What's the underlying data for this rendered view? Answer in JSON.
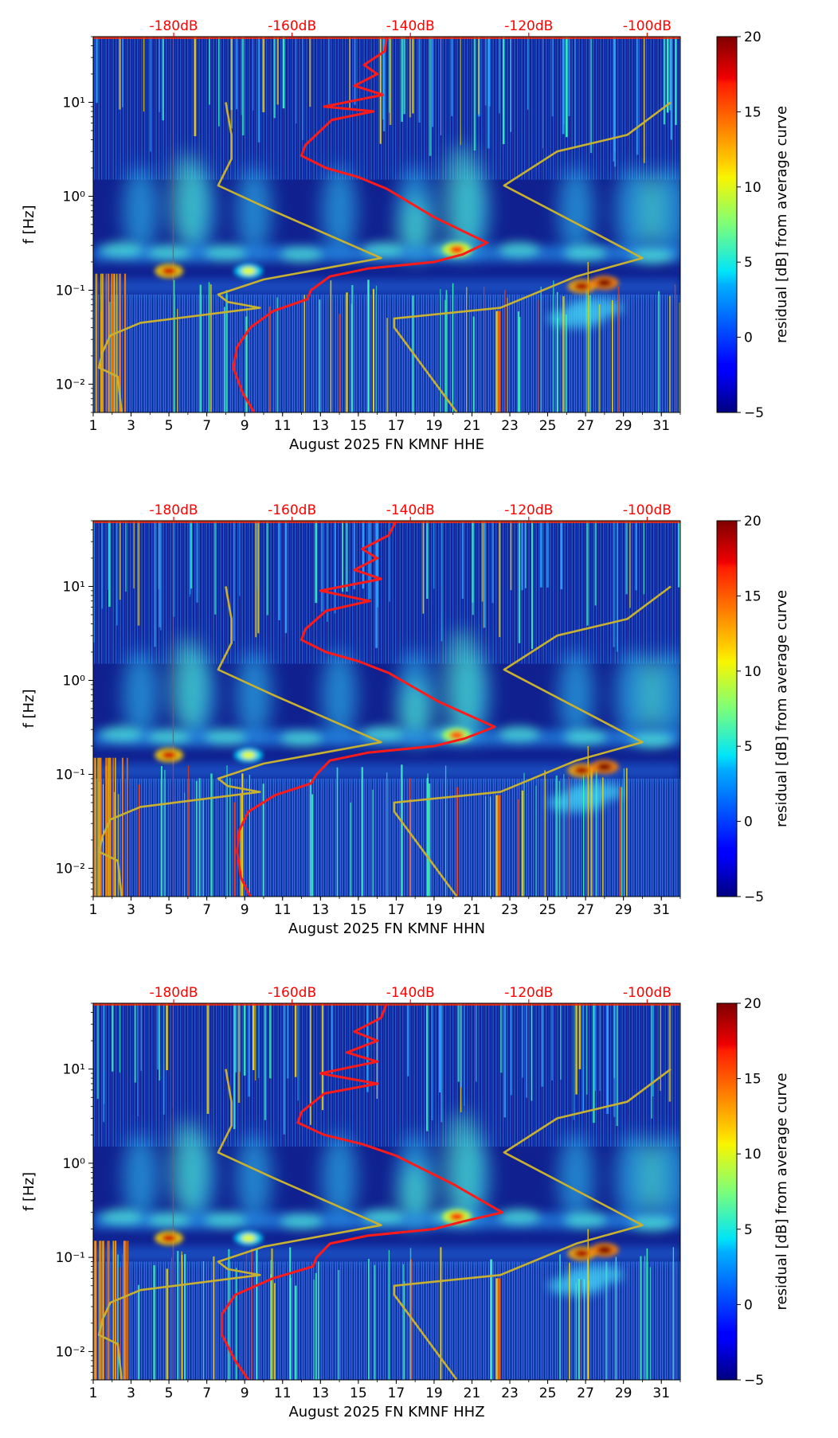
{
  "colors": {
    "db_scale": "#ff0000",
    "average_curve": "#ff1a1a",
    "noise_model": "#c8b030",
    "background": "#10208f"
  },
  "chart_data": [
    {
      "type": "heatmap",
      "title": "",
      "xlabel": "August 2025 FN KMNF  HHE",
      "ylabel": "f [Hz]",
      "x_range": [
        1,
        32
      ],
      "y_range_hz": [
        0.005,
        50
      ],
      "y_scale": "log",
      "x_ticks": [
        "1",
        "3",
        "5",
        "7",
        "9",
        "11",
        "13",
        "15",
        "17",
        "19",
        "21",
        "23",
        "25",
        "27",
        "29",
        "31"
      ],
      "y_ticks": [
        {
          "value": 0.01,
          "label": "10⁻²"
        },
        {
          "value": 0.1,
          "label": "10⁻¹"
        },
        {
          "value": 1,
          "label": "10⁰"
        },
        {
          "value": 10,
          "label": "10¹"
        }
      ],
      "top_scale": [
        {
          "value": 5.25,
          "label": "-180dB"
        },
        {
          "value": 11.5,
          "label": "-160dB"
        },
        {
          "value": 17.75,
          "label": "-140dB"
        },
        {
          "value": 24.0,
          "label": "-120dB"
        },
        {
          "value": 30.25,
          "label": "-100dB"
        }
      ],
      "colorbar": {
        "label": "residual [dB] from average curve",
        "min": -5,
        "max": 20,
        "ticks": [
          "20",
          "15",
          "10",
          "5",
          "0",
          "−5"
        ]
      },
      "noise_model_low": [
        [
          8.0,
          10
        ],
        [
          8.3,
          4.5
        ],
        [
          8.3,
          2.5
        ],
        [
          7.6,
          1.3
        ],
        [
          10.5,
          0.7
        ],
        [
          16.2,
          0.22
        ],
        [
          10,
          0.13
        ],
        [
          7.6,
          0.09
        ],
        [
          8.1,
          0.075
        ],
        [
          9.8,
          0.065
        ],
        [
          3.5,
          0.045
        ],
        [
          1.9,
          0.033
        ],
        [
          1.5,
          0.022
        ],
        [
          1.3,
          0.015
        ],
        [
          2.3,
          0.012
        ],
        [
          2.5,
          0.005
        ]
      ],
      "noise_model_high": [
        [
          31.5,
          10
        ],
        [
          29.2,
          4.5
        ],
        [
          25.5,
          3.0
        ],
        [
          22.7,
          1.3
        ],
        [
          30.0,
          0.22
        ],
        [
          26.5,
          0.14
        ],
        [
          22.5,
          0.065
        ],
        [
          16.9,
          0.05
        ],
        [
          16.9,
          0.04
        ],
        [
          20.2,
          0.005
        ]
      ],
      "average_curve": [
        [
          16.5,
          50
        ],
        [
          16.4,
          35
        ],
        [
          15.3,
          25
        ],
        [
          16.0,
          20
        ],
        [
          14.8,
          15
        ],
        [
          16.3,
          12
        ],
        [
          13.2,
          9
        ],
        [
          15.8,
          8
        ],
        [
          13.6,
          6.5
        ],
        [
          12.2,
          3.5
        ],
        [
          12.0,
          2.7
        ],
        [
          13.3,
          2.0
        ],
        [
          15.0,
          1.6
        ],
        [
          16.5,
          1.2
        ],
        [
          19.0,
          0.6
        ],
        [
          21.8,
          0.32
        ],
        [
          20.5,
          0.24
        ],
        [
          19.0,
          0.2
        ],
        [
          15.5,
          0.17
        ],
        [
          13.5,
          0.14
        ],
        [
          12.5,
          0.1
        ],
        [
          12.3,
          0.08
        ],
        [
          10.5,
          0.06
        ],
        [
          9.3,
          0.04
        ],
        [
          8.6,
          0.025
        ],
        [
          8.4,
          0.015
        ],
        [
          8.9,
          0.008
        ],
        [
          9.5,
          0.005
        ]
      ],
      "hot_spots": [
        {
          "day": 5.0,
          "f_hz": 0.16,
          "value_db": 18
        },
        {
          "day": 9.2,
          "f_hz": 0.16,
          "value_db": 10
        },
        {
          "day": 20.2,
          "f_hz": 0.27,
          "value_db": 16
        },
        {
          "day": 26.8,
          "f_hz": 0.11,
          "value_db": 19
        },
        {
          "day": 28.0,
          "f_hz": 0.12,
          "value_db": 20
        }
      ]
    },
    {
      "type": "heatmap",
      "title": "",
      "xlabel": "August 2025 FN KMNF  HHN",
      "ylabel": "f [Hz]",
      "x_range": [
        1,
        32
      ],
      "y_range_hz": [
        0.005,
        50
      ],
      "y_scale": "log",
      "x_ticks": [
        "1",
        "3",
        "5",
        "7",
        "9",
        "11",
        "13",
        "15",
        "17",
        "19",
        "21",
        "23",
        "25",
        "27",
        "29",
        "31"
      ],
      "y_ticks": [
        {
          "value": 0.01,
          "label": "10⁻²"
        },
        {
          "value": 0.1,
          "label": "10⁻¹"
        },
        {
          "value": 1,
          "label": "10⁰"
        },
        {
          "value": 10,
          "label": "10¹"
        }
      ],
      "top_scale": [
        {
          "value": 5.25,
          "label": "-180dB"
        },
        {
          "value": 11.5,
          "label": "-160dB"
        },
        {
          "value": 17.75,
          "label": "-140dB"
        },
        {
          "value": 24.0,
          "label": "-120dB"
        },
        {
          "value": 30.25,
          "label": "-100dB"
        }
      ],
      "colorbar": {
        "label": "residual [dB] from average curve",
        "min": -5,
        "max": 20,
        "ticks": [
          "20",
          "15",
          "10",
          "5",
          "0",
          "−5"
        ]
      },
      "noise_model_low": [
        [
          8.0,
          10
        ],
        [
          8.3,
          4.5
        ],
        [
          8.3,
          2.5
        ],
        [
          7.6,
          1.3
        ],
        [
          10.5,
          0.7
        ],
        [
          16.2,
          0.22
        ],
        [
          10,
          0.13
        ],
        [
          7.6,
          0.09
        ],
        [
          8.1,
          0.075
        ],
        [
          9.8,
          0.065
        ],
        [
          3.5,
          0.045
        ],
        [
          1.9,
          0.033
        ],
        [
          1.5,
          0.022
        ],
        [
          1.3,
          0.015
        ],
        [
          2.3,
          0.012
        ],
        [
          2.5,
          0.005
        ]
      ],
      "noise_model_high": [
        [
          31.5,
          10
        ],
        [
          29.2,
          4.5
        ],
        [
          25.5,
          3.0
        ],
        [
          22.7,
          1.3
        ],
        [
          30.0,
          0.22
        ],
        [
          26.5,
          0.14
        ],
        [
          22.5,
          0.065
        ],
        [
          16.9,
          0.05
        ],
        [
          16.9,
          0.04
        ],
        [
          20.2,
          0.005
        ]
      ],
      "average_curve": [
        [
          17.0,
          50
        ],
        [
          16.6,
          35
        ],
        [
          15.2,
          25
        ],
        [
          16.0,
          20
        ],
        [
          14.8,
          15
        ],
        [
          16.2,
          12
        ],
        [
          13.0,
          9
        ],
        [
          15.6,
          7
        ],
        [
          13.3,
          5.5
        ],
        [
          12.2,
          3.5
        ],
        [
          12.0,
          2.7
        ],
        [
          13.3,
          2.0
        ],
        [
          15.0,
          1.6
        ],
        [
          16.6,
          1.2
        ],
        [
          19.2,
          0.6
        ],
        [
          22.2,
          0.32
        ],
        [
          20.6,
          0.24
        ],
        [
          19.0,
          0.2
        ],
        [
          15.5,
          0.17
        ],
        [
          13.5,
          0.14
        ],
        [
          12.8,
          0.1
        ],
        [
          12.5,
          0.08
        ],
        [
          10.6,
          0.06
        ],
        [
          9.2,
          0.04
        ],
        [
          8.7,
          0.025
        ],
        [
          8.6,
          0.015
        ],
        [
          8.8,
          0.008
        ],
        [
          9.3,
          0.005
        ]
      ],
      "hot_spots": [
        {
          "day": 5.0,
          "f_hz": 0.16,
          "value_db": 18
        },
        {
          "day": 9.2,
          "f_hz": 0.16,
          "value_db": 10
        },
        {
          "day": 20.2,
          "f_hz": 0.26,
          "value_db": 15
        },
        {
          "day": 26.8,
          "f_hz": 0.11,
          "value_db": 19
        },
        {
          "day": 28.0,
          "f_hz": 0.12,
          "value_db": 20
        }
      ]
    },
    {
      "type": "heatmap",
      "title": "",
      "xlabel": "August 2025 FN KMNF  HHZ",
      "ylabel": "f [Hz]",
      "x_range": [
        1,
        32
      ],
      "y_range_hz": [
        0.005,
        50
      ],
      "y_scale": "log",
      "x_ticks": [
        "1",
        "3",
        "5",
        "7",
        "9",
        "11",
        "13",
        "15",
        "17",
        "19",
        "21",
        "23",
        "25",
        "27",
        "29",
        "31"
      ],
      "y_ticks": [
        {
          "value": 0.01,
          "label": "10⁻²"
        },
        {
          "value": 0.1,
          "label": "10⁻¹"
        },
        {
          "value": 1,
          "label": "10⁰"
        },
        {
          "value": 10,
          "label": "10¹"
        }
      ],
      "top_scale": [
        {
          "value": 5.25,
          "label": "-180dB"
        },
        {
          "value": 11.5,
          "label": "-160dB"
        },
        {
          "value": 17.75,
          "label": "-140dB"
        },
        {
          "value": 24.0,
          "label": "-120dB"
        },
        {
          "value": 30.25,
          "label": "-100dB"
        }
      ],
      "colorbar": {
        "label": "residual [dB] from average curve",
        "min": -5,
        "max": 20,
        "ticks": [
          "20",
          "15",
          "10",
          "5",
          "0",
          "−5"
        ]
      },
      "noise_model_low": [
        [
          8.0,
          10
        ],
        [
          8.3,
          4.5
        ],
        [
          8.3,
          2.5
        ],
        [
          7.6,
          1.3
        ],
        [
          10.5,
          0.7
        ],
        [
          16.2,
          0.22
        ],
        [
          10,
          0.13
        ],
        [
          7.6,
          0.09
        ],
        [
          8.1,
          0.075
        ],
        [
          9.8,
          0.065
        ],
        [
          3.5,
          0.045
        ],
        [
          1.9,
          0.033
        ],
        [
          1.5,
          0.022
        ],
        [
          1.3,
          0.015
        ],
        [
          2.3,
          0.012
        ],
        [
          2.5,
          0.005
        ]
      ],
      "noise_model_high": [
        [
          31.5,
          10
        ],
        [
          29.2,
          4.5
        ],
        [
          25.5,
          3.0
        ],
        [
          22.7,
          1.3
        ],
        [
          30.0,
          0.22
        ],
        [
          26.5,
          0.14
        ],
        [
          22.5,
          0.065
        ],
        [
          16.9,
          0.05
        ],
        [
          16.9,
          0.04
        ],
        [
          20.2,
          0.005
        ]
      ],
      "average_curve": [
        [
          16.5,
          50
        ],
        [
          16.2,
          35
        ],
        [
          14.8,
          25
        ],
        [
          16.0,
          20
        ],
        [
          14.4,
          15
        ],
        [
          16.0,
          12
        ],
        [
          13.0,
          9
        ],
        [
          16.0,
          7
        ],
        [
          13.2,
          5.5
        ],
        [
          12.0,
          3.5
        ],
        [
          11.8,
          2.7
        ],
        [
          13.2,
          2.0
        ],
        [
          15.2,
          1.6
        ],
        [
          17.0,
          1.2
        ],
        [
          20.0,
          0.6
        ],
        [
          22.6,
          0.3
        ],
        [
          20.5,
          0.24
        ],
        [
          19.0,
          0.2
        ],
        [
          15.5,
          0.17
        ],
        [
          13.5,
          0.14
        ],
        [
          12.8,
          0.1
        ],
        [
          12.6,
          0.08
        ],
        [
          10.5,
          0.06
        ],
        [
          8.5,
          0.04
        ],
        [
          7.8,
          0.025
        ],
        [
          7.8,
          0.015
        ],
        [
          8.5,
          0.008
        ],
        [
          9.2,
          0.005
        ]
      ],
      "hot_spots": [
        {
          "day": 5.0,
          "f_hz": 0.16,
          "value_db": 18
        },
        {
          "day": 9.2,
          "f_hz": 0.16,
          "value_db": 10
        },
        {
          "day": 20.2,
          "f_hz": 0.27,
          "value_db": 16
        },
        {
          "day": 26.8,
          "f_hz": 0.11,
          "value_db": 19
        },
        {
          "day": 28.0,
          "f_hz": 0.12,
          "value_db": 20
        }
      ]
    }
  ]
}
